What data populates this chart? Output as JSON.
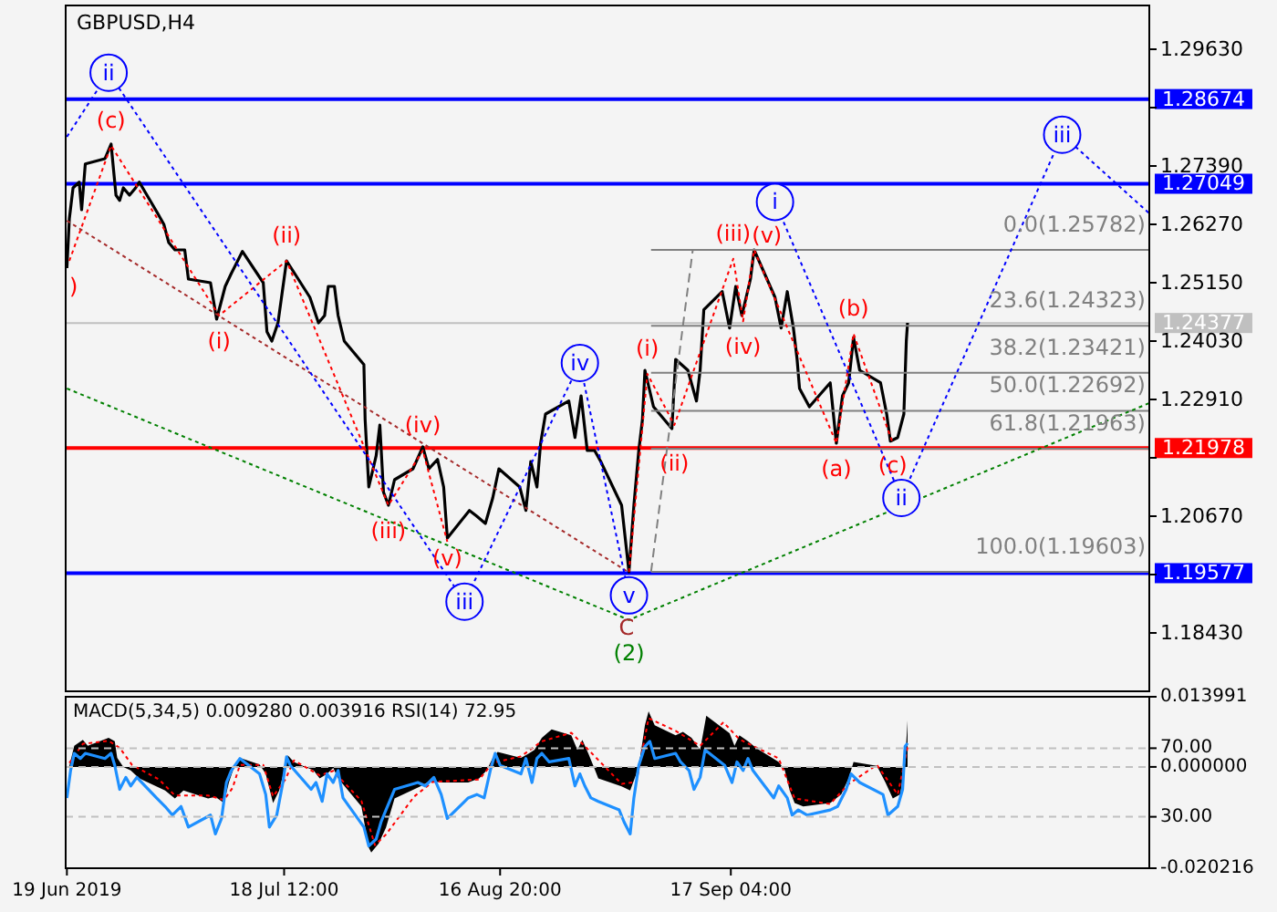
{
  "chart_data": [
    {
      "type": "line",
      "title": "GBPUSD,H4",
      "tick_labels": "y",
      "xlim": [
        "2019-06-18T20:00",
        "2019-11-13T00:00"
      ],
      "ylim": [
        1.1731,
        1.3047
      ],
      "yticks": [
        {
          "value": 1.1843,
          "label": "1.18430"
        },
        {
          "value": 1.1955,
          "label": null
        },
        {
          "value": 1.2067,
          "label": "1.20670"
        },
        {
          "value": 1.2179,
          "label": null
        },
        {
          "value": 1.2291,
          "label": "1.22910"
        },
        {
          "value": 1.2403,
          "label": "1.24030"
        },
        {
          "value": 1.2515,
          "label": "1.25150"
        },
        {
          "value": 1.2627,
          "label": "1.26270"
        },
        {
          "value": 1.2739,
          "label": "1.27390"
        },
        {
          "value": 1.2851,
          "label": null
        },
        {
          "value": 1.2963,
          "label": "1.29630"
        }
      ],
      "ref_lines": [
        {
          "axis": "y",
          "value": 1.28674,
          "label": "1.28674",
          "color": "#0000ff"
        },
        {
          "axis": "y",
          "value": 1.27049,
          "label": "1.27049",
          "color": "#0000ff"
        },
        {
          "axis": "y",
          "value": 1.21978,
          "label": "1.21978",
          "color": "#ff0000"
        },
        {
          "axis": "y",
          "value": 1.19577,
          "label": "1.19577",
          "color": "#0000ff"
        },
        {
          "axis": "y",
          "value": 1.24377,
          "label": "1.24377",
          "color": "#c0c0c0",
          "line_style": "solid"
        }
      ],
      "annotations": [
        {
          "text": ")",
          "x": "2019-06-19T08:00",
          "y": 1.2557
        },
        {
          "text": "(c)",
          "x": "2019-06-25T00:00",
          "y": 1.2778
        },
        {
          "text": "(i)",
          "x": "2019-07-09T16:00",
          "y": 1.2452
        },
        {
          "text": "(ii)",
          "x": "2019-07-18T20:00",
          "y": 1.2557
        },
        {
          "text": "(iii)",
          "x": "2019-08-01T16:00",
          "y": 1.2088
        },
        {
          "text": "(iv)",
          "x": "2019-08-06T08:00",
          "y": 1.2193
        },
        {
          "text": "(v)",
          "x": "2019-08-09T16:00",
          "y": 1.2018
        },
        {
          "text": "(i)",
          "x": "2019-09-05T20:00",
          "y": 1.234
        },
        {
          "text": "(ii)",
          "x": "2019-09-09T12:00",
          "y": 1.2242
        },
        {
          "text": "(iii)",
          "x": "2019-09-17T12:00",
          "y": 1.2561
        },
        {
          "text": "(iv)",
          "x": "2019-09-18T20:00",
          "y": 1.2441
        },
        {
          "text": "(v)",
          "x": "2019-09-20T08:00",
          "y": 1.2578
        },
        {
          "text": "(a)",
          "x": "2019-10-01T12:00",
          "y": 1.2207
        },
        {
          "text": "(b)",
          "x": "2019-10-03T20:00",
          "y": 1.2417
        },
        {
          "text": "(c)",
          "x": "2019-10-09T04:00",
          "y": 1.2207
        },
        {
          "text": "C",
          "x": "2019-09-03T00:00",
          "y": 1.1962
        },
        {
          "text": "(2)",
          "x": "2019-09-03T08:00",
          "y": 1.1868
        },
        {
          "text": "ii",
          "x": "2019-06-24T16:00",
          "y": 1.2918
        },
        {
          "text": "iii",
          "x": "2019-08-12T00:00",
          "y": 1.1903
        },
        {
          "text": "iv",
          "x": "2019-08-27T16:00",
          "y": 1.2361
        },
        {
          "text": "v",
          "x": "2019-09-03T08:00",
          "y": 1.1915
        },
        {
          "text": "i",
          "x": "2019-09-23T04:00",
          "y": 1.267
        },
        {
          "text": "ii",
          "x": "2019-10-10T08:00",
          "y": 1.2102
        },
        {
          "text": "iii",
          "x": "2019-11-01T04:00",
          "y": 1.2799
        },
        {
          "text": "0.0(1.25782)",
          "x": "2019-11-13T00:00",
          "y": 1.25782
        },
        {
          "text": "23.6(1.24323)",
          "x": "2019-11-13T00:00",
          "y": 1.24323
        },
        {
          "text": "38.2(1.23421)",
          "x": "2019-11-13T00:00",
          "y": 1.23421
        },
        {
          "text": "50.0(1.22692)",
          "x": "2019-11-13T00:00",
          "y": 1.22692
        },
        {
          "text": "61.8(1.21963)",
          "x": "2019-11-13T00:00",
          "y": 1.21963
        },
        {
          "text": "100.0(1.19603)",
          "x": "2019-11-13T00:00",
          "y": 1.19603
        }
      ],
      "series": [
        {
          "color": "#000000",
          "x": [
            "2019-06-19T00:00",
            "2019-06-19T08:00",
            "2019-06-19T20:00",
            "2019-06-20T16:00",
            "2019-06-21T00:00",
            "2019-06-21T12:00",
            "2019-06-24T04:00",
            "2019-06-25T00:00",
            "2019-06-25T16:00",
            "2019-06-26T04:00",
            "2019-06-26T16:00",
            "2019-06-27T12:00",
            "2019-06-28T08:00",
            "2019-06-28T20:00",
            "2019-07-01T08:00",
            "2019-07-02T04:00",
            "2019-07-02T20:00",
            "2019-07-03T16:00",
            "2019-07-05T00:00",
            "2019-07-05T12:00",
            "2019-07-08T12:00",
            "2019-07-09T08:00",
            "2019-07-10T12:00",
            "2019-07-11T08:00",
            "2019-07-12T08:00",
            "2019-07-12T20:00",
            "2019-07-15T16:00",
            "2019-07-16T04:00",
            "2019-07-16T20:00",
            "2019-07-17T16:00",
            "2019-07-18T20:00",
            "2019-07-22T00:00",
            "2019-07-23T04:00",
            "2019-07-24T00:00",
            "2019-07-24T12:00",
            "2019-07-25T08:00",
            "2019-07-25T20:00",
            "2019-07-26T16:00",
            "2019-07-29T08:00",
            "2019-07-29T12:00",
            "2019-07-30T00:00",
            "2019-07-31T00:00",
            "2019-07-31T12:00",
            "2019-08-01T00:00",
            "2019-08-01T16:00",
            "2019-08-02T12:00",
            "2019-08-05T00:00",
            "2019-08-06T08:00",
            "2019-08-07T04:00",
            "2019-08-08T08:00",
            "2019-08-09T04:00",
            "2019-08-09T16:00",
            "2019-08-12T16:00",
            "2019-08-13T16:00",
            "2019-08-14T20:00",
            "2019-08-15T20:00",
            "2019-08-16T16:00",
            "2019-08-19T12:00",
            "2019-08-20T08:00",
            "2019-08-21T00:00",
            "2019-08-21T20:00",
            "2019-08-22T08:00",
            "2019-08-23T00:00",
            "2019-08-26T04:00",
            "2019-08-27T00:00",
            "2019-08-27T20:00",
            "2019-08-28T16:00",
            "2019-08-29T16:00",
            "2019-08-30T12:00",
            "2019-09-02T08:00",
            "2019-09-03T08:00",
            "2019-09-04T00:00",
            "2019-09-04T16:00",
            "2019-09-05T04:00",
            "2019-09-05T12:00",
            "2019-09-06T16:00",
            "2019-09-09T04:00",
            "2019-09-09T16:00",
            "2019-09-11T08:00",
            "2019-09-12T12:00",
            "2019-09-13T00:00",
            "2019-09-13T12:00",
            "2019-09-16T00:00",
            "2019-09-17T00:00",
            "2019-09-17T20:00",
            "2019-09-18T16:00",
            "2019-09-19T20:00",
            "2019-09-20T08:00",
            "2019-09-23T04:00",
            "2019-09-24T00:00",
            "2019-09-24T20:00",
            "2019-09-25T16:00",
            "2019-09-26T04:00",
            "2019-09-26T12:00",
            "2019-09-27T20:00",
            "2019-09-30T16:00",
            "2019-10-01T12:00",
            "2019-10-02T08:00",
            "2019-10-03T04:00",
            "2019-10-03T20:00",
            "2019-10-04T16:00",
            "2019-10-07T12:00",
            "2019-10-08T08:00",
            "2019-10-08T20:00",
            "2019-10-09T20:00",
            "2019-10-10T16:00",
            "2019-10-11T00:00",
            "2019-10-11T04:00"
          ],
          "values": [
            1.2543,
            1.2638,
            1.2697,
            1.2708,
            1.2655,
            1.2743,
            1.2753,
            1.2781,
            1.2683,
            1.2673,
            1.2697,
            1.2683,
            1.2697,
            1.2708,
            1.2648,
            1.2627,
            1.2592,
            1.2578,
            1.2578,
            1.2522,
            1.2515,
            1.2445,
            1.2508,
            1.2533,
            1.2561,
            1.2575,
            1.2515,
            1.2421,
            1.2403,
            1.2438,
            1.2557,
            1.2487,
            1.2438,
            1.2452,
            1.2508,
            1.2508,
            1.2452,
            1.2403,
            1.2358,
            1.2253,
            1.2123,
            1.2183,
            1.2242,
            1.2113,
            1.2088,
            1.2137,
            1.2158,
            1.22,
            1.2158,
            1.2176,
            1.2123,
            1.2025,
            1.2078,
            1.2067,
            1.2053,
            1.2102,
            1.2158,
            1.2123,
            1.2078,
            1.2172,
            1.2123,
            1.2207,
            1.2263,
            1.2288,
            1.2218,
            1.2298,
            1.2193,
            1.2193,
            1.2172,
            1.2088,
            1.196,
            1.2088,
            1.2193,
            1.2253,
            1.2347,
            1.2277,
            1.2235,
            1.2368,
            1.2347,
            1.2288,
            1.2347,
            1.2463,
            1.2498,
            1.2428,
            1.2508,
            1.2452,
            1.2522,
            1.2578,
            1.2487,
            1.2428,
            1.2498,
            1.2428,
            1.2368,
            1.2312,
            1.2277,
            1.2323,
            1.2207,
            1.2298,
            1.2323,
            1.241,
            1.2347,
            1.2323,
            1.2263,
            1.2211,
            1.2218,
            1.2263,
            1.2403,
            1.2438
          ]
        },
        {
          "type": "line",
          "color": "#808080",
          "line_style": "solid",
          "x": [
            "2019-09-06T08:00",
            "2019-11-13T00:00"
          ],
          "values": [
            1.25782,
            1.25782
          ]
        },
        {
          "type": "line",
          "color": "#808080",
          "line_style": "solid",
          "x": [
            "2019-09-06T08:00",
            "2019-11-13T00:00"
          ],
          "values": [
            1.24323,
            1.24323
          ]
        },
        {
          "type": "line",
          "color": "#808080",
          "line_style": "solid",
          "x": [
            "2019-09-06T08:00",
            "2019-11-13T00:00"
          ],
          "values": [
            1.23421,
            1.23421
          ]
        },
        {
          "type": "line",
          "color": "#808080",
          "line_style": "solid",
          "x": [
            "2019-09-06T08:00",
            "2019-11-13T00:00"
          ],
          "values": [
            1.22692,
            1.22692
          ]
        },
        {
          "type": "line",
          "color": "#808080",
          "line_style": "solid",
          "x": [
            "2019-09-06T08:00",
            "2019-11-13T00:00"
          ],
          "values": [
            1.21963,
            1.21963
          ]
        },
        {
          "type": "line",
          "color": "#808080",
          "line_style": "solid",
          "x": [
            "2019-09-06T08:00",
            "2019-11-13T00:00"
          ],
          "values": [
            1.19603,
            1.19603
          ]
        },
        {
          "type": "line",
          "color": "#808080",
          "line_style": "dashed",
          "x": [
            "2019-09-06T08:00",
            "2019-09-12T00:00"
          ],
          "values": [
            1.19603,
            1.25782
          ]
        },
        {
          "type": "line",
          "color": "#ff0000",
          "line_style": "dotted",
          "x": [
            "2019-06-19T08:00",
            "2019-06-25T00:00",
            "2019-07-09T16:00",
            "2019-07-18T20:00",
            "2019-08-01T16:00",
            "2019-08-06T08:00",
            "2019-08-09T16:00"
          ],
          "values": [
            1.2557,
            1.2778,
            1.2452,
            1.2557,
            1.2088,
            1.2193,
            1.2018
          ]
        },
        {
          "type": "line",
          "color": "#ff0000",
          "line_style": "dotted",
          "x": [
            "2019-09-03T08:00",
            "2019-09-05T20:00",
            "2019-09-09T12:00",
            "2019-09-17T12:00",
            "2019-09-18T20:00",
            "2019-09-20T08:00",
            "2019-10-01T12:00",
            "2019-10-03T20:00",
            "2019-10-09T04:00"
          ],
          "values": [
            1.196,
            1.234,
            1.2242,
            1.2561,
            1.2441,
            1.2578,
            1.2207,
            1.2417,
            1.2207
          ]
        },
        {
          "type": "line",
          "color": "#a52a2a",
          "line_style": "dotted",
          "x": [
            "2019-06-19T00:00",
            "2019-09-03T00:00"
          ],
          "values": [
            1.2634,
            1.1962
          ]
        },
        {
          "type": "line",
          "color": "#008000",
          "line_style": "dotted",
          "x": [
            "2019-06-19T00:00",
            "2019-09-03T08:00",
            "2019-11-13T00:00"
          ],
          "values": [
            1.2312,
            1.1868,
            1.2284
          ]
        },
        {
          "type": "line",
          "color": "#0000ff",
          "line_style": "dotted",
          "marker": "circle",
          "x": [
            "2019-06-19T00:00",
            "2019-06-24T16:00",
            "2019-08-12T00:00",
            "2019-08-27T16:00",
            "2019-09-03T08:00"
          ],
          "values": [
            1.2795,
            1.2918,
            1.1903,
            1.2361,
            1.1915
          ]
        },
        {
          "type": "line",
          "color": "#0000ff",
          "line_style": "dotted",
          "marker": "circle",
          "x": [
            "2019-09-23T04:00",
            "2019-10-10T08:00",
            "2019-11-01T04:00",
            "2019-11-13T00:00"
          ],
          "values": [
            1.267,
            1.2102,
            1.2799,
            1.2648
          ]
        }
      ]
    },
    {
      "type": "area",
      "title": "MACD(5,34,5) 0.009280 0.003916 RSI(14) 72.95",
      "grid": "y",
      "xlim": [
        "2019-06-18T20:00",
        "2019-11-13T00:00"
      ],
      "ylim": [
        -0.020216,
        0.013991
      ],
      "y2lim": [
        0,
        100
      ],
      "xticks": [
        {
          "value": "2019-06-19T00:00",
          "label": "19 Jun 2019"
        },
        {
          "value": "2019-07-18T12:00",
          "label": "18 Jul 12:00"
        },
        {
          "value": "2019-08-16T20:00",
          "label": "16 Aug 20:00"
        },
        {
          "value": "2019-09-17T04:00",
          "label": "17 Sep 04:00"
        }
      ],
      "yticks": [
        -0.020216,
        {
          "value": 0,
          "label": "0.000000"
        },
        0.013991
      ],
      "y2ticks": [
        {
          "value": 30,
          "label": "30.00"
        },
        {
          "value": 70,
          "label": "70.00"
        }
      ],
      "series": [
        {
          "color": "#000000",
          "x": [
            "2019-06-19T08:00",
            "2019-06-20T00:00",
            "2019-06-21T04:00",
            "2019-06-21T20:00",
            "2019-06-24T16:00",
            "2019-06-25T12:00",
            "2019-06-25T20:00",
            "2019-06-26T16:00",
            "2019-06-27T16:00",
            "2019-06-28T20:00",
            "2019-07-02T08:00",
            "2019-07-03T16:00",
            "2019-07-04T20:00",
            "2019-07-08T04:00",
            "2019-07-09T04:00",
            "2019-07-10T08:00",
            "2019-07-11T00:00",
            "2019-07-11T20:00",
            "2019-07-12T12:00",
            "2019-07-15T04:00",
            "2019-07-16T00:00",
            "2019-07-17T00:00",
            "2019-07-17T20:00",
            "2019-07-18T16:00",
            "2019-07-19T00:00",
            "2019-07-19T20:00",
            "2019-07-22T12:00",
            "2019-07-23T08:00",
            "2019-07-24T08:00",
            "2019-07-25T04:00",
            "2019-07-25T20:00",
            "2019-07-29T00:00",
            "2019-07-30T00:00",
            "2019-07-30T08:00",
            "2019-07-31T08:00",
            "2019-08-01T08:00",
            "2019-08-02T12:00",
            "2019-08-06T00:00",
            "2019-08-07T08:00",
            "2019-08-08T20:00",
            "2019-08-12T12:00",
            "2019-08-14T00:00",
            "2019-08-15T00:00",
            "2019-08-15T20:00",
            "2019-08-16T12:00",
            "2019-08-19T16:00",
            "2019-08-20T16:00",
            "2019-08-21T12:00",
            "2019-08-22T12:00",
            "2019-08-23T20:00",
            "2019-08-26T12:00",
            "2019-08-27T08:00",
            "2019-08-28T00:00",
            "2019-08-28T20:00",
            "2019-08-29T12:00",
            "2019-08-30T04:00",
            "2019-09-02T08:00",
            "2019-09-03T12:00",
            "2019-09-04T08:00",
            "2019-09-04T20:00",
            "2019-09-05T12:00",
            "2019-09-06T00:00",
            "2019-09-06T20:00",
            "2019-09-09T16:00",
            "2019-09-10T16:00",
            "2019-09-11T20:00",
            "2019-09-13T00:00",
            "2019-09-13T20:00",
            "2019-09-17T00:00",
            "2019-09-17T16:00",
            "2019-09-18T08:00",
            "2019-09-19T12:00",
            "2019-09-20T16:00",
            "2019-09-23T16:00",
            "2019-09-24T12:00",
            "2019-09-25T04:00",
            "2019-09-25T20:00",
            "2019-09-27T00:00",
            "2019-09-30T16:00",
            "2019-10-02T04:00",
            "2019-10-03T04:00",
            "2019-10-03T20:00",
            "2019-10-07T00:00",
            "2019-10-08T04:00",
            "2019-10-09T04:00",
            "2019-10-10T04:00",
            "2019-10-10T20:00",
            "2019-10-11T04:00"
          ],
          "values": [
            0.0002,
            0.0042,
            0.0054,
            0.0042,
            0.0058,
            0.0051,
            0.0018,
            0,
            -0.0007,
            -0.0023,
            -0.0047,
            -0.0063,
            -0.0047,
            -0.0063,
            -0.006,
            -0.0072,
            -0.0031,
            0.0005,
            0.0018,
            0.0005,
            -0.0014,
            -0.0072,
            -0.0047,
            0.0002,
            0.0023,
            0.001,
            -0.0007,
            -0.0023,
            -0.0014,
            -0.0002,
            -0.0023,
            -0.0079,
            -0.0161,
            -0.0171,
            -0.0153,
            -0.0121,
            -0.0063,
            -0.0039,
            -0.0028,
            -0.0031,
            -0.0031,
            -0.0023,
            -0.0007,
            0.0018,
            0.003,
            0.0018,
            0.0026,
            0.0034,
            0.0058,
            0.0075,
            0.0063,
            0.0034,
            0.0054,
            0.0026,
            0.0002,
            -0.0023,
            -0.0039,
            -0.0047,
            -0.0014,
            0.0018,
            0.0083,
            0.0111,
            0.0083,
            0.0063,
            0.007,
            0.0058,
            0.0034,
            0.0102,
            0.0067,
            0.0042,
            0.0063,
            0.0051,
            0.0037,
            0.001,
            -0.0007,
            -0.0047,
            -0.0072,
            -0.0079,
            -0.0072,
            -0.0055,
            -0.0023,
            0.001,
            0.0002,
            -0.0031,
            -0.0063,
            -0.0055,
            0.0008,
            0.00928
          ]
        },
        {
          "type": "line",
          "color": "#ff0000",
          "line_style": "dotted",
          "x": [
            "2019-06-19T08:00",
            "2019-06-21T04:00",
            "2019-06-24T16:00",
            "2019-06-26T04:00",
            "2019-06-27T20:00",
            "2019-07-01T12:00",
            "2019-07-03T16:00",
            "2019-07-08T04:00",
            "2019-07-10T08:00",
            "2019-07-11T12:00",
            "2019-07-12T12:00",
            "2019-07-15T16:00",
            "2019-07-17T00:00",
            "2019-07-18T16:00",
            "2019-07-19T20:00",
            "2019-07-23T08:00",
            "2019-07-25T04:00",
            "2019-07-29T00:00",
            "2019-07-30T20:00",
            "2019-08-01T08:00",
            "2019-08-05T04:00",
            "2019-08-07T16:00",
            "2019-08-14T00:00",
            "2019-08-15T20:00",
            "2019-08-19T16:00",
            "2019-08-22T12:00",
            "2019-08-26T12:00",
            "2019-08-28T20:00",
            "2019-09-02T08:00",
            "2019-09-04T08:00",
            "2019-09-06T00:00",
            "2019-09-09T16:00",
            "2019-09-13T00:00",
            "2019-09-16T04:00",
            "2019-09-18T08:00",
            "2019-09-23T16:00",
            "2019-09-25T20:00",
            "2019-09-30T16:00",
            "2019-10-03T04:00",
            "2019-10-07T00:00",
            "2019-10-09T20:00",
            "2019-10-11T04:00"
          ],
          "values": [
            0.0008,
            0.0046,
            0.0052,
            0.0038,
            0.0004,
            -0.0025,
            -0.0057,
            -0.0057,
            -0.0066,
            -0.0042,
            0.0004,
            0.0004,
            -0.0059,
            -0.0025,
            0.0013,
            -0.0017,
            -0.0008,
            -0.0068,
            -0.0156,
            -0.0135,
            -0.0059,
            -0.003,
            -0.0025,
            0.0008,
            0.0021,
            0.0051,
            0.0068,
            0.0034,
            -0.0034,
            -0.003,
            0.0097,
            0.0072,
            0.0042,
            0.0089,
            0.0055,
            0.0017,
            -0.0063,
            -0.0074,
            -0.0034,
            0.0004,
            -0.0055,
            0.003916
          ]
        },
        {
          "type": "line",
          "color": "#1e90ff",
          "axis": "y2",
          "x": [
            "2019-06-19T00:00",
            "2019-06-19T12:00",
            "2019-06-20T00:00",
            "2019-06-20T20:00",
            "2019-06-21T12:00",
            "2019-06-24T04:00",
            "2019-06-25T00:00",
            "2019-06-25T12:00",
            "2019-06-26T04:00",
            "2019-06-27T00:00",
            "2019-06-27T16:00",
            "2019-06-28T12:00",
            "2019-07-01T04:00",
            "2019-07-02T08:00",
            "2019-07-03T08:00",
            "2019-07-04T12:00",
            "2019-07-05T12:00",
            "2019-07-08T12:00",
            "2019-07-09T04:00",
            "2019-07-10T00:00",
            "2019-07-10T16:00",
            "2019-07-11T08:00",
            "2019-07-12T12:00",
            "2019-07-15T04:00",
            "2019-07-16T00:00",
            "2019-07-16T12:00",
            "2019-07-17T12:00",
            "2019-07-18T08:00",
            "2019-07-18T20:00",
            "2019-07-19T08:00",
            "2019-07-22T04:00",
            "2019-07-22T20:00",
            "2019-07-23T16:00",
            "2019-07-24T08:00",
            "2019-07-25T04:00",
            "2019-07-25T20:00",
            "2019-07-26T12:00",
            "2019-07-29T08:00",
            "2019-07-30T00:00",
            "2019-07-31T00:00",
            "2019-07-31T16:00",
            "2019-08-01T08:00",
            "2019-08-02T12:00",
            "2019-08-05T16:00",
            "2019-08-06T16:00",
            "2019-08-07T20:00",
            "2019-08-08T20:00",
            "2019-08-09T16:00",
            "2019-08-12T12:00",
            "2019-08-13T16:00",
            "2019-08-14T16:00",
            "2019-08-15T12:00",
            "2019-08-16T04:00",
            "2019-08-16T20:00",
            "2019-08-19T16:00",
            "2019-08-20T08:00",
            "2019-08-21T04:00",
            "2019-08-21T20:00",
            "2019-08-22T12:00",
            "2019-08-23T12:00",
            "2019-08-26T04:00",
            "2019-08-27T00:00",
            "2019-08-27T16:00",
            "2019-08-28T08:00",
            "2019-08-29T04:00",
            "2019-08-30T04:00",
            "2019-09-02T00:00",
            "2019-09-02T16:00",
            "2019-09-03T12:00",
            "2019-09-04T00:00",
            "2019-09-04T16:00",
            "2019-09-05T12:00",
            "2019-09-06T04:00",
            "2019-09-06T20:00",
            "2019-09-09T16:00",
            "2019-09-10T08:00",
            "2019-09-11T12:00",
            "2019-09-12T04:00",
            "2019-09-13T00:00",
            "2019-09-13T16:00",
            "2019-09-16T08:00",
            "2019-09-17T08:00",
            "2019-09-18T00:00",
            "2019-09-18T20:00",
            "2019-09-19T12:00",
            "2019-09-20T04:00",
            "2019-09-23T00:00",
            "2019-09-23T16:00",
            "2019-09-24T20:00",
            "2019-09-25T12:00",
            "2019-09-26T08:00",
            "2019-09-27T12:00",
            "2019-09-30T16:00",
            "2019-10-01T16:00",
            "2019-10-02T20:00",
            "2019-10-03T12:00",
            "2019-10-04T16:00",
            "2019-10-07T20:00",
            "2019-10-08T12:00",
            "2019-10-09T20:00",
            "2019-10-10T12:00",
            "2019-10-10T20:00",
            "2019-10-11T04:00"
          ],
          "values": [
            41,
            57,
            67,
            64,
            67,
            64,
            67,
            60,
            46,
            53,
            48,
            53,
            41,
            36,
            31,
            36,
            24,
            31,
            20,
            29,
            50,
            57,
            64,
            55,
            43,
            24,
            31,
            50,
            65,
            60,
            46,
            50,
            39,
            55,
            50,
            57,
            41,
            24,
            13,
            17,
            27,
            34,
            46,
            50,
            48,
            53,
            43,
            29,
            41,
            43,
            41,
            57,
            67,
            60,
            55,
            64,
            50,
            64,
            67,
            62,
            64,
            48,
            55,
            48,
            41,
            39,
            34,
            27,
            20,
            41,
            60,
            71,
            74,
            64,
            67,
            62,
            57,
            46,
            53,
            69,
            60,
            50,
            62,
            57,
            64,
            57,
            41,
            48,
            41,
            31,
            34,
            31,
            34,
            36,
            46,
            55,
            50,
            43,
            31,
            36,
            46,
            71,
            72.95
          ]
        }
      ]
    }
  ]
}
